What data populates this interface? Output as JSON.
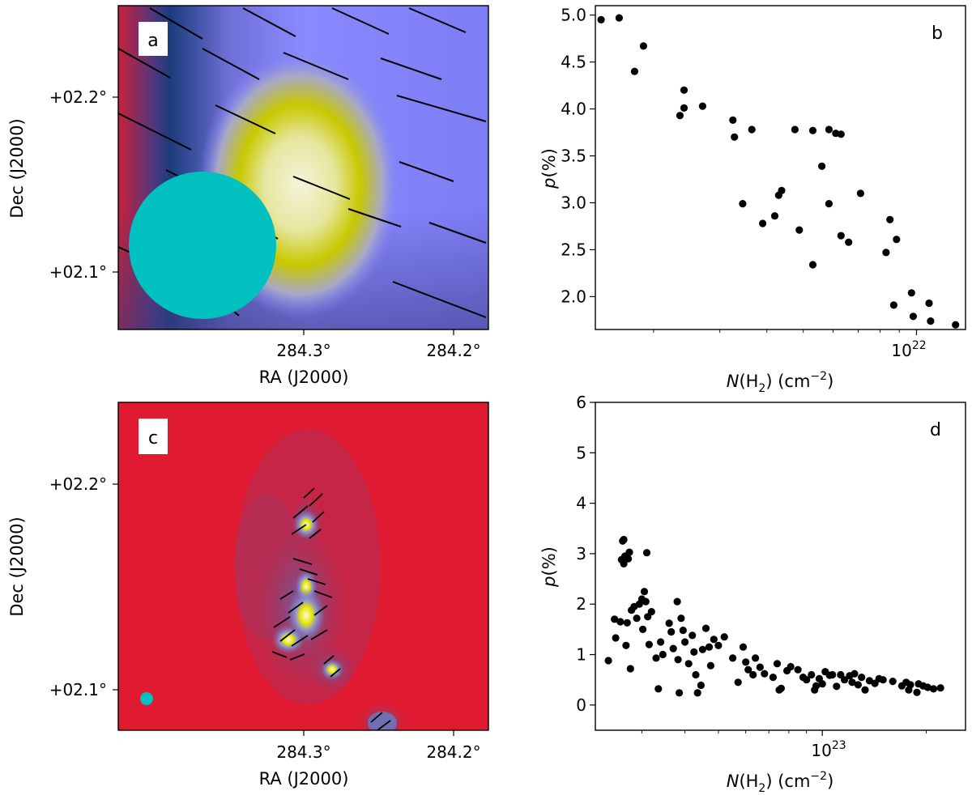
{
  "chart_data": [
    {
      "panel": "a",
      "type": "heatmap",
      "label": "a",
      "xlabel": "RA (J2000)",
      "ylabel": "Dec (J2000)",
      "xticks": [
        "284.3°",
        "284.2°"
      ],
      "yticks": [
        "+02.2°",
        "+02.1°"
      ],
      "colors": {
        "background_low": "#e0102c",
        "mid": "#8080ff",
        "high": "#c8c800",
        "peak": "#f4f4d8",
        "beam": "#00c0c0",
        "vectors": "#000000"
      }
    },
    {
      "panel": "b",
      "type": "scatter",
      "label": "b",
      "xlabel": "N(H₂) (cm⁻²)",
      "ylabel": "p(%)",
      "xscale": "log",
      "xticks": [
        "10²²"
      ],
      "yticks": [
        "2.0",
        "2.5",
        "3.0",
        "3.5",
        "4.0",
        "4.5",
        "5.0"
      ],
      "xlim": [
        1.4e+21,
        1.35e+22
      ],
      "ylim": [
        1.65,
        5.1
      ],
      "points": [
        [
          1.45e+21,
          4.95
        ],
        [
          1.62e+21,
          4.97
        ],
        [
          1.78e+21,
          4.4
        ],
        [
          1.88e+21,
          4.67
        ],
        [
          2.35e+21,
          3.93
        ],
        [
          2.41e+21,
          4.01
        ],
        [
          2.41e+21,
          4.2
        ],
        [
          2.7e+21,
          4.03
        ],
        [
          3.25e+21,
          3.88
        ],
        [
          3.28e+21,
          3.7
        ],
        [
          3.65e+21,
          3.78
        ],
        [
          3.45e+21,
          2.99
        ],
        [
          3.9e+21,
          2.78
        ],
        [
          4.2e+21,
          2.86
        ],
        [
          4.3e+21,
          3.08
        ],
        [
          4.38e+21,
          3.13
        ],
        [
          4.75e+21,
          3.78
        ],
        [
          4.88e+21,
          2.71
        ],
        [
          5.3e+21,
          3.77
        ],
        [
          5.3e+21,
          2.34
        ],
        [
          5.6e+21,
          3.39
        ],
        [
          5.85e+21,
          3.78
        ],
        [
          5.85e+21,
          2.99
        ],
        [
          6.1e+21,
          3.74
        ],
        [
          6.3e+21,
          3.73
        ],
        [
          6.3e+21,
          2.65
        ],
        [
          6.6e+21,
          2.58
        ],
        [
          7.1e+21,
          3.1
        ],
        [
          8.3e+21,
          2.47
        ],
        [
          8.5e+21,
          2.82
        ],
        [
          8.7e+21,
          1.91
        ],
        [
          8.85e+21,
          2.61
        ],
        [
          9.7e+21,
          2.04
        ],
        [
          9.8e+21,
          1.79
        ],
        [
          1.08e+22,
          1.93
        ],
        [
          1.09e+22,
          1.74
        ],
        [
          1.27e+22,
          1.7
        ]
      ]
    },
    {
      "panel": "c",
      "type": "heatmap",
      "label": "c",
      "xlabel": "RA (J2000)",
      "ylabel": "Dec (J2000)",
      "xticks": [
        "284.3°",
        "284.2°"
      ],
      "yticks": [
        "+02.2°",
        "+02.1°"
      ],
      "colors": {
        "background": "#e01a30",
        "mid": "#7070c0",
        "high": "#d8d800",
        "peak": "#f8f8e8",
        "beam": "#00c0c0",
        "vectors": "#000000"
      }
    },
    {
      "panel": "d",
      "type": "scatter",
      "label": "d",
      "xlabel": "N(H₂) (cm⁻²)",
      "ylabel": "p(%)",
      "xscale": "log",
      "xticks": [
        "10²³"
      ],
      "yticks": [
        "0",
        "1",
        "2",
        "3",
        "4",
        "5",
        "6"
      ],
      "xlim": [
        2.2e+22,
        2.6e+23
      ],
      "ylim": [
        -0.5,
        6.0
      ],
      "points": [
        [
          2.4e+22,
          0.88
        ],
        [
          2.5e+22,
          1.7
        ],
        [
          2.52e+22,
          1.33
        ],
        [
          2.6e+22,
          1.65
        ],
        [
          2.62e+22,
          2.88
        ],
        [
          2.64e+22,
          3.25
        ],
        [
          2.66e+22,
          3.28
        ],
        [
          2.66e+22,
          2.8
        ],
        [
          2.68e+22,
          2.95
        ],
        [
          2.7e+22,
          1.18
        ],
        [
          2.72e+22,
          1.63
        ],
        [
          2.74e+22,
          2.9
        ],
        [
          2.76e+22,
          3.03
        ],
        [
          2.78e+22,
          0.72
        ],
        [
          2.8e+22,
          1.88
        ],
        [
          2.85e+22,
          1.95
        ],
        [
          2.9e+22,
          1.72
        ],
        [
          2.95e+22,
          2.0
        ],
        [
          3e+22,
          2.1
        ],
        [
          3.02e+22,
          1.5
        ],
        [
          3.05e+22,
          2.25
        ],
        [
          3.08e+22,
          2.05
        ],
        [
          3.1e+22,
          3.02
        ],
        [
          3.12e+22,
          1.75
        ],
        [
          3.15e+22,
          1.2
        ],
        [
          3.2e+22,
          1.85
        ],
        [
          3.3e+22,
          0.93
        ],
        [
          3.35e+22,
          0.32
        ],
        [
          3.4e+22,
          1.25
        ],
        [
          3.45e+22,
          1.0
        ],
        [
          3.6e+22,
          1.62
        ],
        [
          3.65e+22,
          1.45
        ],
        [
          3.7e+22,
          1.12
        ],
        [
          3.8e+22,
          2.05
        ],
        [
          3.82e+22,
          0.9
        ],
        [
          3.85e+22,
          0.24
        ],
        [
          3.9e+22,
          1.72
        ],
        [
          3.95e+22,
          1.48
        ],
        [
          4e+22,
          1.25
        ],
        [
          4.1e+22,
          0.82
        ],
        [
          4.2e+22,
          1.38
        ],
        [
          4.25e+22,
          1.05
        ],
        [
          4.3e+22,
          0.6
        ],
        [
          4.35e+22,
          0.24
        ],
        [
          4.45e+22,
          0.39
        ],
        [
          4.5e+22,
          1.1
        ],
        [
          4.6e+22,
          1.52
        ],
        [
          4.7e+22,
          1.15
        ],
        [
          4.75e+22,
          0.78
        ],
        [
          4.85e+22,
          1.3
        ],
        [
          5e+22,
          1.18
        ],
        [
          5.2e+22,
          1.35
        ],
        [
          5.5e+22,
          0.93
        ],
        [
          5.7e+22,
          0.45
        ],
        [
          5.9e+22,
          1.15
        ],
        [
          6e+22,
          0.85
        ],
        [
          6.1e+22,
          0.7
        ],
        [
          6.3e+22,
          0.6
        ],
        [
          6.4e+22,
          0.93
        ],
        [
          6.6e+22,
          0.75
        ],
        [
          6.8e+22,
          0.62
        ],
        [
          7.2e+22,
          0.55
        ],
        [
          7.4e+22,
          0.82
        ],
        [
          7.5e+22,
          0.3
        ],
        [
          7.6e+22,
          0.33
        ],
        [
          7.9e+22,
          0.68
        ],
        [
          8.1e+22,
          0.76
        ],
        [
          8.5e+22,
          0.7
        ],
        [
          8.8e+22,
          0.55
        ],
        [
          9e+22,
          0.5
        ],
        [
          9.3e+22,
          0.6
        ],
        [
          9.5e+22,
          0.3
        ],
        [
          9.6e+22,
          0.38
        ],
        [
          9.8e+22,
          0.52
        ],
        [
          1e+23,
          0.42
        ],
        [
          1.02e+23,
          0.66
        ],
        [
          1.05e+23,
          0.59
        ],
        [
          1.07e+23,
          0.6
        ],
        [
          1.1e+23,
          0.37
        ],
        [
          1.13e+23,
          0.6
        ],
        [
          1.16e+23,
          0.5
        ],
        [
          1.2e+23,
          0.58
        ],
        [
          1.22e+23,
          0.45
        ],
        [
          1.24e+23,
          0.62
        ],
        [
          1.27e+23,
          0.4
        ],
        [
          1.3e+23,
          0.55
        ],
        [
          1.33e+23,
          0.3
        ],
        [
          1.37e+23,
          0.48
        ],
        [
          1.42e+23,
          0.43
        ],
        [
          1.46e+23,
          0.52
        ],
        [
          1.5e+23,
          0.5
        ],
        [
          1.6e+23,
          0.47
        ],
        [
          1.7e+23,
          0.38
        ],
        [
          1.75e+23,
          0.45
        ],
        [
          1.78e+23,
          0.3
        ],
        [
          1.8e+23,
          0.4
        ],
        [
          1.88e+23,
          0.25
        ],
        [
          1.9e+23,
          0.42
        ],
        [
          1.96e+23,
          0.38
        ],
        [
          2.02e+23,
          0.35
        ],
        [
          2.1e+23,
          0.32
        ],
        [
          2.2e+23,
          0.34
        ]
      ]
    }
  ]
}
